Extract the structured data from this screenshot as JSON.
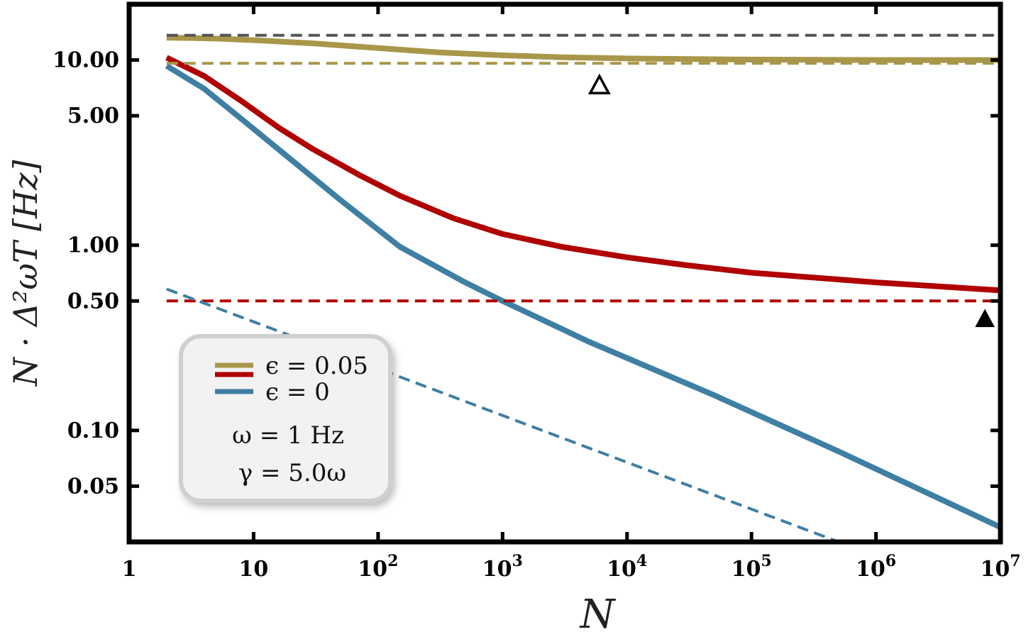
{
  "chart_data": {
    "type": "line",
    "xlabel": "N",
    "ylabel": "N · Δ²ωT [Hz]",
    "x_scale": "log",
    "y_scale": "log",
    "xlim": [
      1,
      10000000
    ],
    "ylim": [
      0.025,
      20
    ],
    "x_ticks": [
      {
        "value": 1,
        "base": "1",
        "exp": ""
      },
      {
        "value": 10,
        "base": "10",
        "exp": ""
      },
      {
        "value": 100,
        "base": "10",
        "exp": "2"
      },
      {
        "value": 1000,
        "base": "10",
        "exp": "3"
      },
      {
        "value": 10000,
        "base": "10",
        "exp": "4"
      },
      {
        "value": 100000,
        "base": "10",
        "exp": "5"
      },
      {
        "value": 1000000,
        "base": "10",
        "exp": "6"
      },
      {
        "value": 10000000,
        "base": "10",
        "exp": "7"
      }
    ],
    "y_ticks": [
      {
        "value": 10,
        "label": "10.00"
      },
      {
        "value": 5,
        "label": "5.00"
      },
      {
        "value": 1,
        "label": "1.00"
      },
      {
        "value": 0.5,
        "label": "0.50"
      },
      {
        "value": 0.1,
        "label": "0.10"
      },
      {
        "value": 0.05,
        "label": "0.05"
      }
    ],
    "series": [
      {
        "name": "ϵ = 0.05",
        "color": "#a8974a",
        "style": "solid",
        "x": [
          2,
          3,
          5,
          10,
          30,
          100,
          300,
          1000,
          3000,
          10000,
          100000,
          1000000,
          10000000
        ],
        "y": [
          13.2,
          13.15,
          13.05,
          12.8,
          12.3,
          11.6,
          11.0,
          10.6,
          10.35,
          10.2,
          10.05,
          10.0,
          10.0
        ]
      },
      {
        "name": "",
        "color": "#b00000",
        "style": "solid",
        "x": [
          2,
          4,
          8,
          16,
          30,
          70,
          150,
          400,
          1000,
          3000,
          10000,
          30000,
          100000,
          1000000,
          10000000
        ],
        "y": [
          10.3,
          8.2,
          6.0,
          4.3,
          3.3,
          2.4,
          1.85,
          1.4,
          1.15,
          0.98,
          0.86,
          0.78,
          0.71,
          0.63,
          0.57
        ]
      },
      {
        "name": "ϵ = 0",
        "color": "#3e7fa3",
        "style": "solid",
        "x": [
          2,
          4,
          8,
          20,
          50,
          150,
          500,
          1000,
          5000,
          50000,
          500000,
          10000000
        ],
        "y": [
          9.3,
          7.0,
          4.8,
          2.9,
          1.75,
          0.98,
          0.63,
          0.5,
          0.3,
          0.155,
          0.077,
          0.03
        ]
      },
      {
        "name": "",
        "color": "#555555",
        "style": "dashed",
        "x": [
          2,
          10000000
        ],
        "y": [
          13.6,
          13.6
        ]
      },
      {
        "name": "",
        "color": "#a8974a",
        "style": "dashed",
        "x": [
          2,
          10000000
        ],
        "y": [
          9.6,
          9.6
        ]
      },
      {
        "name": "",
        "color": "#b00000",
        "style": "dashed",
        "x": [
          2,
          10000000
        ],
        "y": [
          0.5,
          0.5
        ]
      },
      {
        "name": "",
        "color": "#3e7fa3",
        "style": "dashed",
        "x": [
          2,
          500000
        ],
        "y": [
          0.58,
          0.025
        ]
      }
    ],
    "markers": [
      {
        "symbol": "open-triangle",
        "x": 6000,
        "y": 7.3
      },
      {
        "symbol": "filled-triangle",
        "x": 7500000,
        "y": 0.4
      }
    ],
    "legend": {
      "placement": "bottom-left",
      "entries": [
        {
          "label": "ϵ = 0.05",
          "color": "#a8974a"
        },
        {
          "label": "",
          "color": "#b00000"
        },
        {
          "label": "ϵ = 0",
          "color": "#3e7fa3"
        }
      ],
      "params": [
        "ω = 1 Hz",
        "γ = 5.0ω"
      ]
    },
    "grid": false
  }
}
